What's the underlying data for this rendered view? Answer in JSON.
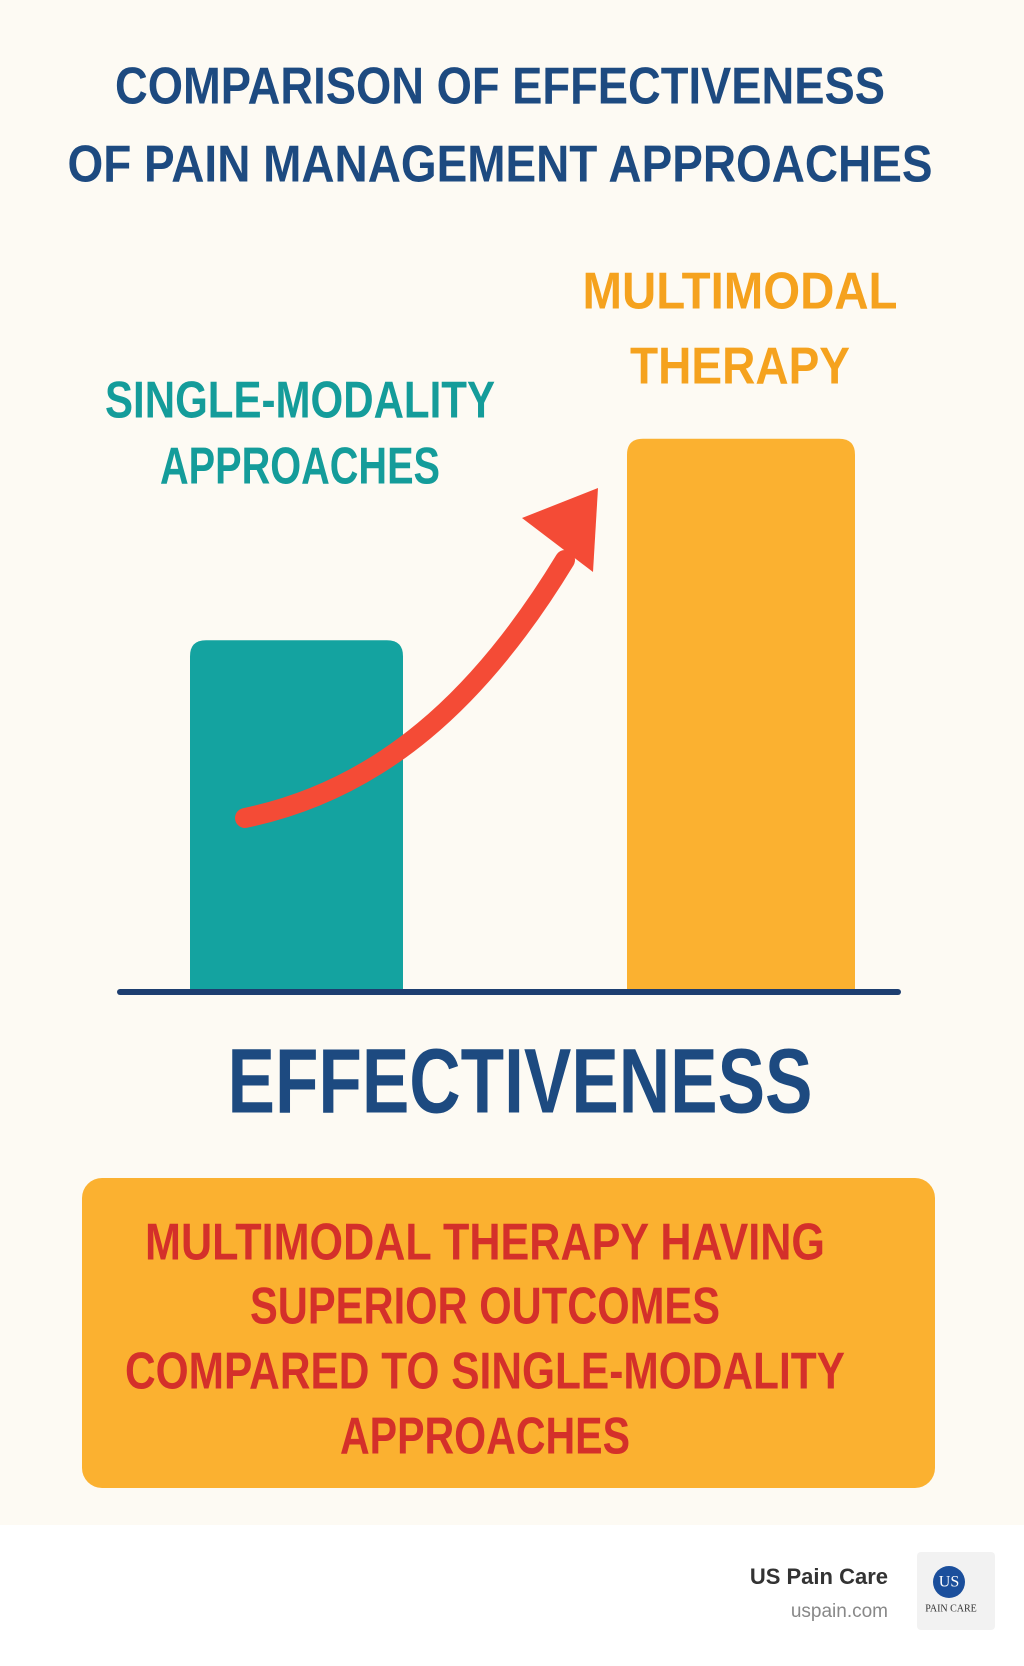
{
  "chart_data": {
    "type": "bar",
    "title": [
      "COMPARISON OF EFFECTIVENESS",
      "OF PAIN MANAGEMENT APPROACHES"
    ],
    "categories": [
      [
        "SINGLE-MODALITY",
        "APPROACHES"
      ],
      [
        "MULTIMODAL",
        "THERAPY"
      ]
    ],
    "values": [
      33,
      52
    ],
    "colors": [
      "#14a3a0",
      "#fbb130"
    ],
    "label_colors": [
      "#149c9a",
      "#f5a21e"
    ],
    "x_label": "EFFECTIVENESS",
    "annotation": [
      "MULTIMODAL THERAPY HAVING",
      "SUPERIOR OUTCOMES",
      "COMPARED TO SINGLE-MODALITY",
      "APPROACHES"
    ]
  },
  "footer": {
    "brand": "US Pain Care",
    "url": "uspain.com",
    "logo_mark": "US",
    "logo_text": "PAIN CARE"
  }
}
